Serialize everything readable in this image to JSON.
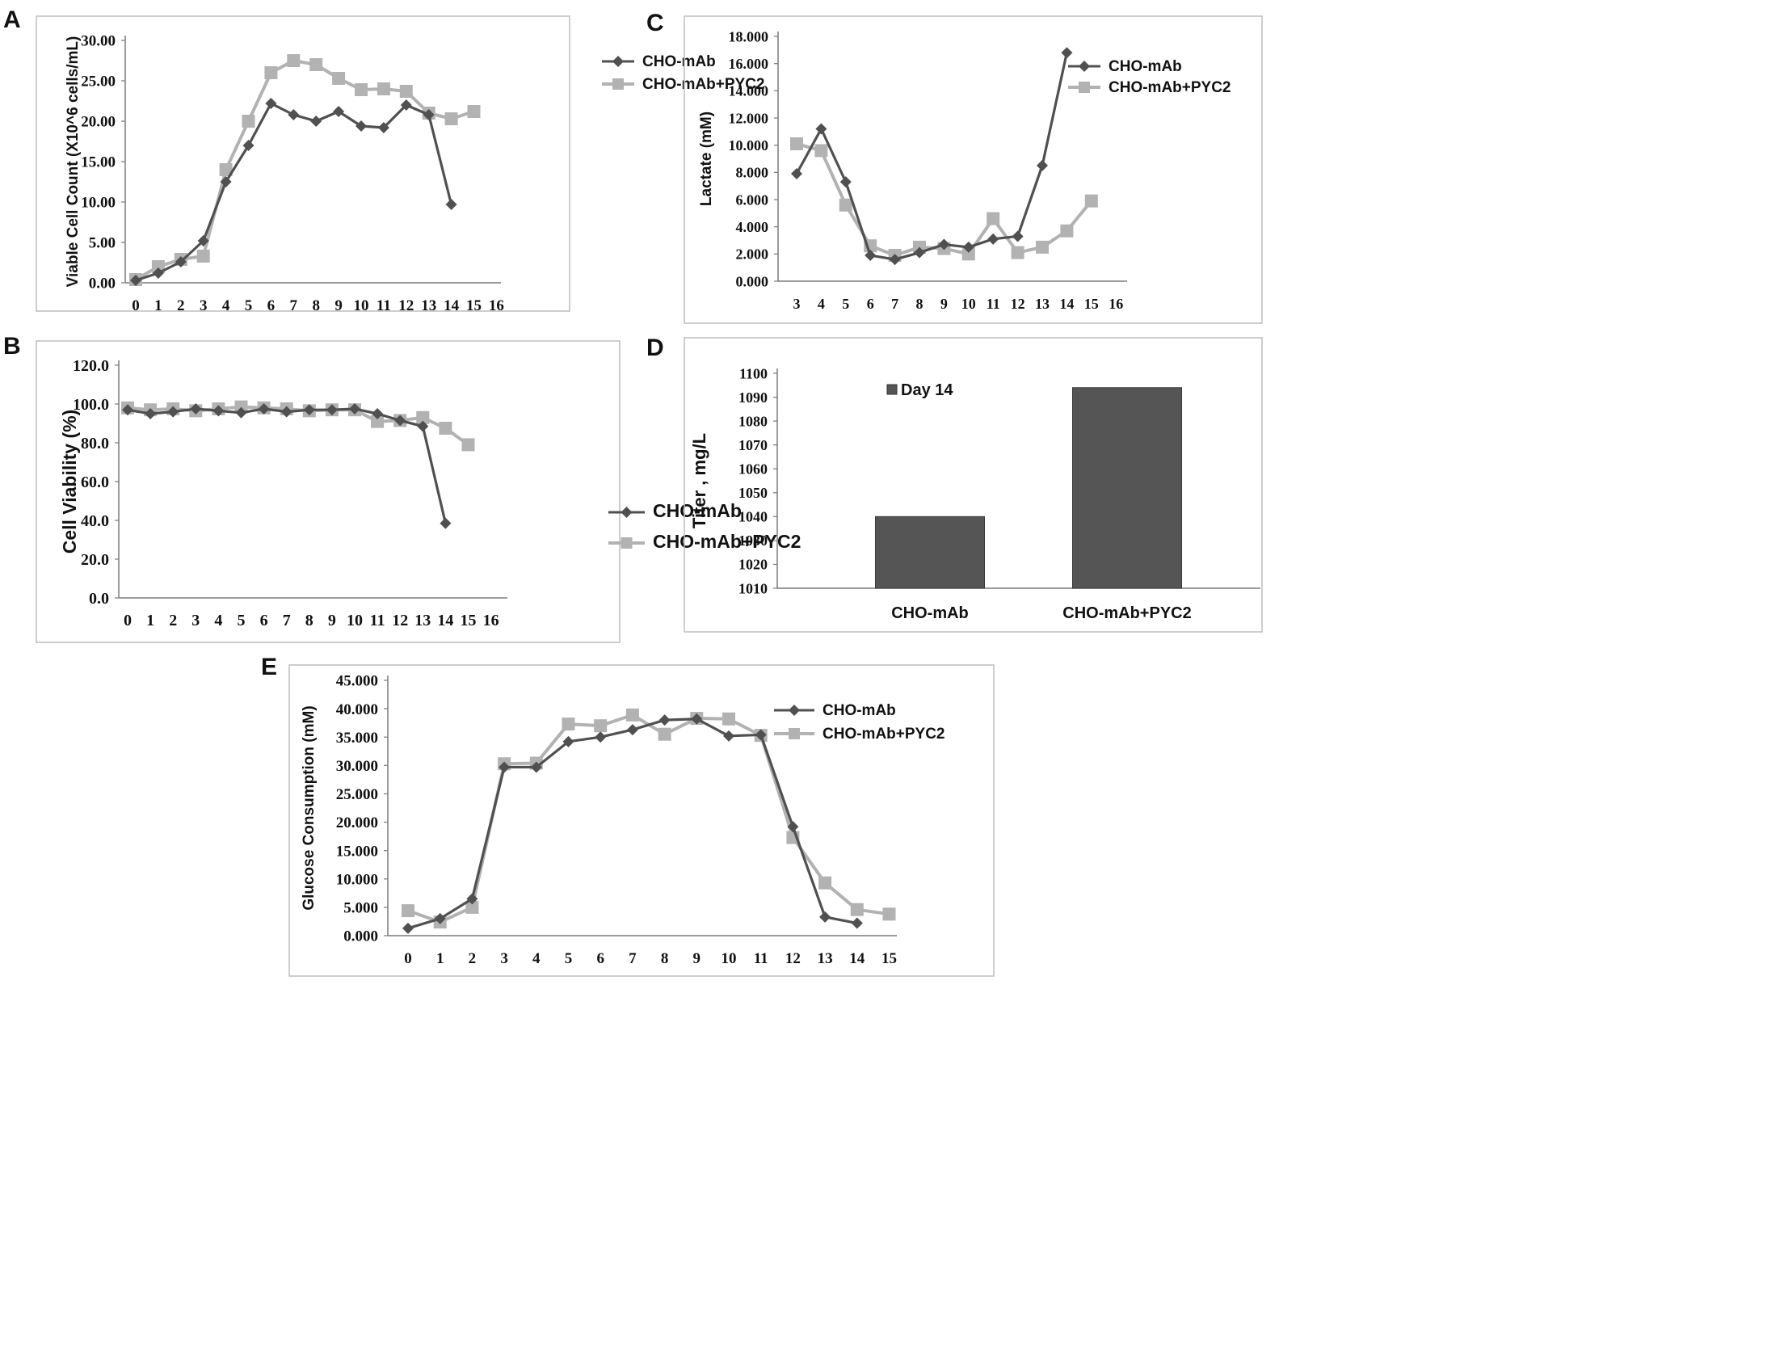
{
  "colors": {
    "dark": "#505050",
    "light": "#b2b2b2",
    "bar": "#555555",
    "frame": "#bdbdbd",
    "axis": "#7a7a7a"
  },
  "chart_data": [
    {
      "panel": "A",
      "type": "line",
      "ylabel": "Viable Cell Count (X10^6 cells/mL)",
      "xlabel": "",
      "x_ticks": [
        "0",
        "1",
        "2",
        "3",
        "4",
        "5",
        "6",
        "7",
        "8",
        "9",
        "10",
        "11",
        "12",
        "13",
        "14",
        "15",
        "16"
      ],
      "y_ticks": [
        "0.00",
        "5.00",
        "10.00",
        "15.00",
        "20.00",
        "25.00",
        "30.00"
      ],
      "xlim": [
        0,
        16
      ],
      "ylim": [
        0,
        30
      ],
      "legend_position": "top-right",
      "series": [
        {
          "name": "CHO-mAb",
          "marker": "diamond",
          "color": "#505050",
          "x": [
            0,
            1,
            2,
            3,
            4,
            5,
            6,
            7,
            8,
            9,
            10,
            11,
            12,
            13,
            14
          ],
          "values": [
            0.3,
            1.2,
            2.6,
            5.2,
            12.5,
            17.0,
            22.2,
            20.8,
            20.0,
            21.2,
            19.4,
            19.2,
            22.0,
            20.8,
            9.7
          ]
        },
        {
          "name": "CHO-mAb+PYC2",
          "marker": "square",
          "color": "#b2b2b2",
          "x": [
            0,
            1,
            2,
            3,
            4,
            5,
            6,
            7,
            8,
            9,
            10,
            11,
            12,
            13,
            14,
            15
          ],
          "values": [
            0.4,
            2.0,
            2.9,
            3.3,
            14.0,
            20.0,
            26.0,
            27.5,
            27.0,
            25.3,
            23.9,
            24.0,
            23.7,
            21.0,
            20.3,
            21.2
          ]
        }
      ]
    },
    {
      "panel": "B",
      "type": "line",
      "ylabel": "Cell Viability (%)",
      "xlabel": "",
      "x_ticks": [
        "0",
        "1",
        "2",
        "3",
        "4",
        "5",
        "6",
        "7",
        "8",
        "9",
        "10",
        "11",
        "12",
        "13",
        "14",
        "15",
        "16"
      ],
      "y_ticks": [
        "0.0",
        "20.0",
        "40.0",
        "60.0",
        "80.0",
        "100.0",
        "120.0"
      ],
      "xlim": [
        0,
        16
      ],
      "ylim": [
        0,
        120
      ],
      "legend_position": "top-right",
      "series": [
        {
          "name": "CHO-mAb",
          "marker": "diamond",
          "color": "#505050",
          "x": [
            0,
            1,
            2,
            3,
            4,
            5,
            6,
            7,
            8,
            9,
            10,
            11,
            12,
            13,
            14
          ],
          "values": [
            97.0,
            95.0,
            96.0,
            97.5,
            96.5,
            95.5,
            97.5,
            96.0,
            97.0,
            97.0,
            97.5,
            95.0,
            91.5,
            88.5,
            38.5
          ]
        },
        {
          "name": "CHO-mAb+PYC2",
          "marker": "square",
          "color": "#b2b2b2",
          "x": [
            0,
            1,
            2,
            3,
            4,
            5,
            6,
            7,
            8,
            9,
            10,
            11,
            12,
            13,
            14,
            15
          ],
          "values": [
            98.0,
            97.0,
            97.5,
            96.5,
            97.5,
            98.5,
            98.0,
            97.5,
            96.5,
            97.0,
            97.0,
            91.0,
            91.5,
            93.0,
            87.5,
            79.0
          ]
        }
      ]
    },
    {
      "panel": "C",
      "type": "line",
      "ylabel": "Lactate (mM)",
      "xlabel": "",
      "x_ticks": [
        "3",
        "4",
        "5",
        "6",
        "7",
        "8",
        "9",
        "10",
        "11",
        "12",
        "13",
        "14",
        "15",
        "16"
      ],
      "y_ticks": [
        "0.000",
        "2.000",
        "4.000",
        "6.000",
        "8.000",
        "10.000",
        "12.000",
        "14.000",
        "16.000",
        "18.000"
      ],
      "xlim": [
        3,
        16
      ],
      "ylim": [
        0,
        18
      ],
      "legend_position": "top-right",
      "series": [
        {
          "name": "CHO-mAb",
          "marker": "diamond",
          "color": "#505050",
          "x": [
            3,
            4,
            5,
            6,
            7,
            8,
            9,
            10,
            11,
            12,
            13,
            14
          ],
          "values": [
            7.9,
            11.2,
            7.3,
            1.9,
            1.6,
            2.1,
            2.7,
            2.5,
            3.1,
            3.3,
            8.5,
            16.8
          ]
        },
        {
          "name": "CHO-mAb+PYC2",
          "marker": "square",
          "color": "#b2b2b2",
          "x": [
            3,
            4,
            5,
            6,
            7,
            8,
            9,
            10,
            11,
            12,
            13,
            14,
            15
          ],
          "values": [
            10.1,
            9.6,
            5.6,
            2.6,
            1.9,
            2.5,
            2.4,
            2.0,
            4.6,
            2.1,
            2.5,
            3.7,
            5.9
          ]
        }
      ]
    },
    {
      "panel": "D",
      "type": "bar",
      "ylabel": "Titer , mg/L",
      "xlabel": "",
      "categories": [
        "CHO-mAb",
        "CHO-mAb+PYC2"
      ],
      "y_ticks": [
        "1010",
        "1020",
        "1030",
        "1040",
        "1050",
        "1060",
        "1070",
        "1080",
        "1090",
        "1100"
      ],
      "ylim": [
        1010,
        1100
      ],
      "legend_position": "top-center",
      "series": [
        {
          "name": "Day 14",
          "color": "#555555",
          "values": [
            1040,
            1094
          ]
        }
      ]
    },
    {
      "panel": "E",
      "type": "line",
      "ylabel": "Glucose Consumption (mM)",
      "xlabel": "",
      "x_ticks": [
        "0",
        "1",
        "2",
        "3",
        "4",
        "5",
        "6",
        "7",
        "8",
        "9",
        "10",
        "11",
        "12",
        "13",
        "14",
        "15"
      ],
      "y_ticks": [
        "0.000",
        "5.000",
        "10.000",
        "15.000",
        "20.000",
        "25.000",
        "30.000",
        "35.000",
        "40.000",
        "45.000"
      ],
      "xlim": [
        0,
        15
      ],
      "ylim": [
        0,
        45
      ],
      "legend_position": "top-right",
      "series": [
        {
          "name": "CHO-mAb",
          "marker": "diamond",
          "color": "#505050",
          "x": [
            0,
            1,
            2,
            3,
            4,
            5,
            6,
            7,
            8,
            9,
            10,
            11,
            12,
            13,
            14
          ],
          "values": [
            1.3,
            3.0,
            6.5,
            29.7,
            29.7,
            34.2,
            35.0,
            36.3,
            38.0,
            38.2,
            35.2,
            35.4,
            19.2,
            3.3,
            2.2
          ]
        },
        {
          "name": "CHO-mAb+PYC2",
          "marker": "square",
          "color": "#b2b2b2",
          "x": [
            0,
            1,
            2,
            3,
            4,
            5,
            6,
            7,
            8,
            9,
            10,
            11,
            12,
            13,
            14,
            15
          ],
          "values": [
            4.4,
            2.4,
            5.0,
            30.3,
            30.4,
            37.3,
            37.0,
            38.9,
            35.5,
            38.3,
            38.2,
            35.3,
            17.3,
            9.3,
            4.6,
            3.8
          ]
        }
      ]
    }
  ]
}
